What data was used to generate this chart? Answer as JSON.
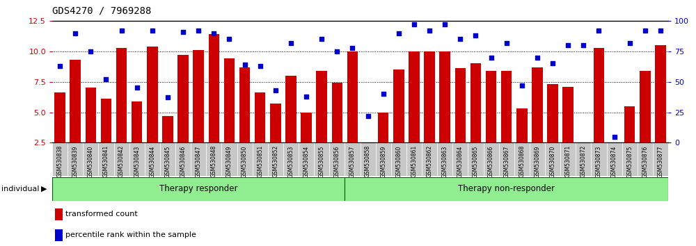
{
  "title": "GDS4270 / 7969288",
  "samples": [
    "GSM530838",
    "GSM530839",
    "GSM530840",
    "GSM530841",
    "GSM530842",
    "GSM530843",
    "GSM530844",
    "GSM530845",
    "GSM530846",
    "GSM530847",
    "GSM530848",
    "GSM530849",
    "GSM530850",
    "GSM530851",
    "GSM530852",
    "GSM530853",
    "GSM530854",
    "GSM530855",
    "GSM530856",
    "GSM530857",
    "GSM530858",
    "GSM530859",
    "GSM530860",
    "GSM530861",
    "GSM530862",
    "GSM530863",
    "GSM530864",
    "GSM530865",
    "GSM530866",
    "GSM530867",
    "GSM530868",
    "GSM530869",
    "GSM530870",
    "GSM530871",
    "GSM530872",
    "GSM530873",
    "GSM530874",
    "GSM530875",
    "GSM530876",
    "GSM530877"
  ],
  "transformed_count": [
    6.6,
    9.3,
    7.0,
    6.1,
    10.3,
    5.9,
    10.4,
    4.7,
    9.7,
    10.1,
    11.4,
    9.4,
    8.7,
    6.6,
    5.7,
    8.0,
    5.0,
    8.4,
    7.4,
    10.0,
    2.5,
    5.0,
    8.5,
    10.0,
    10.0,
    10.0,
    8.6,
    9.0,
    8.4,
    8.4,
    5.3,
    8.7,
    7.3,
    7.1,
    2.5,
    10.3,
    2.5,
    5.5,
    8.4,
    10.5
  ],
  "percentile_rank": [
    63,
    90,
    75,
    52,
    92,
    45,
    92,
    37,
    91,
    92,
    90,
    85,
    64,
    63,
    43,
    82,
    38,
    85,
    75,
    78,
    22,
    40,
    90,
    97,
    92,
    97,
    85,
    88,
    70,
    82,
    47,
    70,
    65,
    80,
    80,
    92,
    5,
    82,
    92,
    92
  ],
  "group_labels": [
    "Therapy responder",
    "Therapy non-responder"
  ],
  "n_responder": 19,
  "n_total": 40,
  "bar_color": "#CC0000",
  "dot_color": "#0000CC",
  "ylim_left": [
    2.5,
    12.5
  ],
  "ylim_right": [
    0,
    100
  ],
  "yticks_left": [
    2.5,
    5.0,
    7.5,
    10.0,
    12.5
  ],
  "yticks_right": [
    0,
    25,
    50,
    75,
    100
  ],
  "title_color": "#000000",
  "left_axis_color": "#CC0000",
  "right_axis_color": "#0000CC",
  "legend_items": [
    "transformed count",
    "percentile rank within the sample"
  ],
  "individual_label": "individual",
  "tick_bg_color": "#C8C8C8",
  "group_fill_color": "#90EE90",
  "group_edge_color": "#006400"
}
